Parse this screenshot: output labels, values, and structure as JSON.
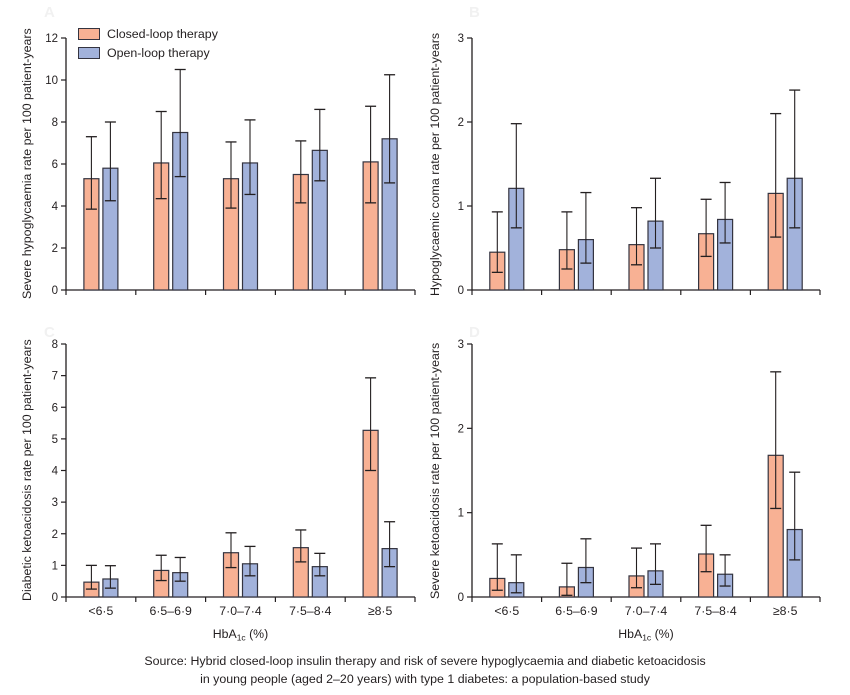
{
  "page": {
    "background": "#ffffff"
  },
  "colors": {
    "closed_fill": "#f8b194",
    "open_fill": "#a2b2db",
    "bar_border": "#343440",
    "axis": "#231f20",
    "error_bar": "#231f20",
    "ghost_label": "#f1f1f1"
  },
  "legend": {
    "items": [
      {
        "label": "Closed-loop therapy",
        "color": "#f8b194"
      },
      {
        "label": "Open-loop therapy",
        "color": "#a2b2db"
      }
    ]
  },
  "xaxis": {
    "label_main": "HbA",
    "label_sub": "1c",
    "label_rest": " (%)",
    "categories": [
      "<6·5",
      "6·5–6·9",
      "7·0–7·4",
      "7·5–8·4",
      "≥8·5"
    ]
  },
  "source": {
    "line1": "Source: Hybrid closed-loop insulin therapy and risk of severe hypoglycaemia and diabetic ketoacidosis",
    "line2": "in young people (aged 2–20 years) with type 1 diabetes: a population-based study"
  },
  "chart_data": [
    {
      "id": "severe-hypoglycaemia",
      "type": "bar",
      "panel_letter": "A",
      "ylabel": "Severe hypoglycaemia rate per 100 patient-years",
      "ylim": [
        0,
        12
      ],
      "yticks": [
        0,
        2,
        4,
        6,
        8,
        10,
        12
      ],
      "grid": false,
      "legend_position": "top-left",
      "categories": [
        "<6·5",
        "6·5–6·9",
        "7·0–7·4",
        "7·5–8·4",
        "≥8·5"
      ],
      "series": [
        {
          "name": "Closed-loop therapy",
          "values": [
            5.3,
            6.05,
            5.3,
            5.5,
            6.1
          ],
          "ci_low": [
            3.85,
            4.35,
            3.9,
            4.15,
            4.15
          ],
          "ci_high": [
            7.3,
            8.5,
            7.05,
            7.1,
            8.75
          ]
        },
        {
          "name": "Open-loop therapy",
          "values": [
            5.8,
            7.5,
            6.05,
            6.65,
            7.2
          ],
          "ci_low": [
            4.25,
            5.4,
            4.55,
            5.2,
            5.1
          ],
          "ci_high": [
            8.0,
            10.5,
            8.1,
            8.6,
            10.25
          ]
        }
      ]
    },
    {
      "id": "hypoglycaemic-coma",
      "type": "bar",
      "panel_letter": "B",
      "ylabel": "Hypoglycaemic coma rate per 100 patient-years",
      "ylim": [
        0,
        3
      ],
      "yticks": [
        0,
        1,
        2,
        3
      ],
      "grid": false,
      "categories": [
        "<6·5",
        "6·5–6·9",
        "7·0–7·4",
        "7·5–8·4",
        "≥8·5"
      ],
      "series": [
        {
          "name": "Closed-loop therapy",
          "values": [
            0.45,
            0.48,
            0.54,
            0.67,
            1.15
          ],
          "ci_low": [
            0.21,
            0.25,
            0.3,
            0.4,
            0.63
          ],
          "ci_high": [
            0.93,
            0.93,
            0.98,
            1.08,
            2.1
          ]
        },
        {
          "name": "Open-loop therapy",
          "values": [
            1.21,
            0.6,
            0.82,
            0.84,
            1.33
          ],
          "ci_low": [
            0.74,
            0.32,
            0.5,
            0.56,
            0.74
          ],
          "ci_high": [
            1.98,
            1.16,
            1.33,
            1.28,
            2.38
          ]
        }
      ]
    },
    {
      "id": "diabetic-ketoacidosis",
      "type": "bar",
      "panel_letter": "C",
      "ylabel": "Diabetic ketoacidosis rate per 100 patient-years",
      "ylim": [
        0,
        8
      ],
      "yticks": [
        0,
        1,
        2,
        3,
        4,
        5,
        6,
        7,
        8
      ],
      "grid": false,
      "categories": [
        "<6·5",
        "6·5–6·9",
        "7·0–7·4",
        "7·5–8·4",
        "≥8·5"
      ],
      "series": [
        {
          "name": "Closed-loop therapy",
          "values": [
            0.47,
            0.84,
            1.4,
            1.56,
            5.27
          ],
          "ci_low": [
            0.25,
            0.52,
            0.93,
            1.11,
            4.0
          ],
          "ci_high": [
            1.0,
            1.32,
            2.03,
            2.12,
            6.93
          ]
        },
        {
          "name": "Open-loop therapy",
          "values": [
            0.57,
            0.77,
            1.05,
            0.96,
            1.53
          ],
          "ci_low": [
            0.28,
            0.5,
            0.67,
            0.67,
            0.96
          ],
          "ci_high": [
            0.99,
            1.25,
            1.6,
            1.38,
            2.38
          ]
        }
      ]
    },
    {
      "id": "severe-ketoacidosis",
      "type": "bar",
      "panel_letter": "D",
      "ylabel": "Severe ketoacidosis rate per 100 patient-years",
      "ylim": [
        0,
        3
      ],
      "yticks": [
        0,
        1,
        2,
        3
      ],
      "grid": false,
      "categories": [
        "<6·5",
        "6·5–6·9",
        "7·0–7·4",
        "7·5–8·4",
        "≥8·5"
      ],
      "series": [
        {
          "name": "Closed-loop therapy",
          "values": [
            0.22,
            0.12,
            0.25,
            0.51,
            1.68
          ],
          "ci_low": [
            0.08,
            0.02,
            0.11,
            0.3,
            1.05
          ],
          "ci_high": [
            0.63,
            0.4,
            0.58,
            0.85,
            2.67
          ]
        },
        {
          "name": "Open-loop therapy",
          "values": [
            0.17,
            0.35,
            0.31,
            0.27,
            0.8
          ],
          "ci_low": [
            0.05,
            0.17,
            0.15,
            0.13,
            0.44
          ],
          "ci_high": [
            0.5,
            0.69,
            0.63,
            0.5,
            1.48
          ]
        }
      ]
    }
  ]
}
